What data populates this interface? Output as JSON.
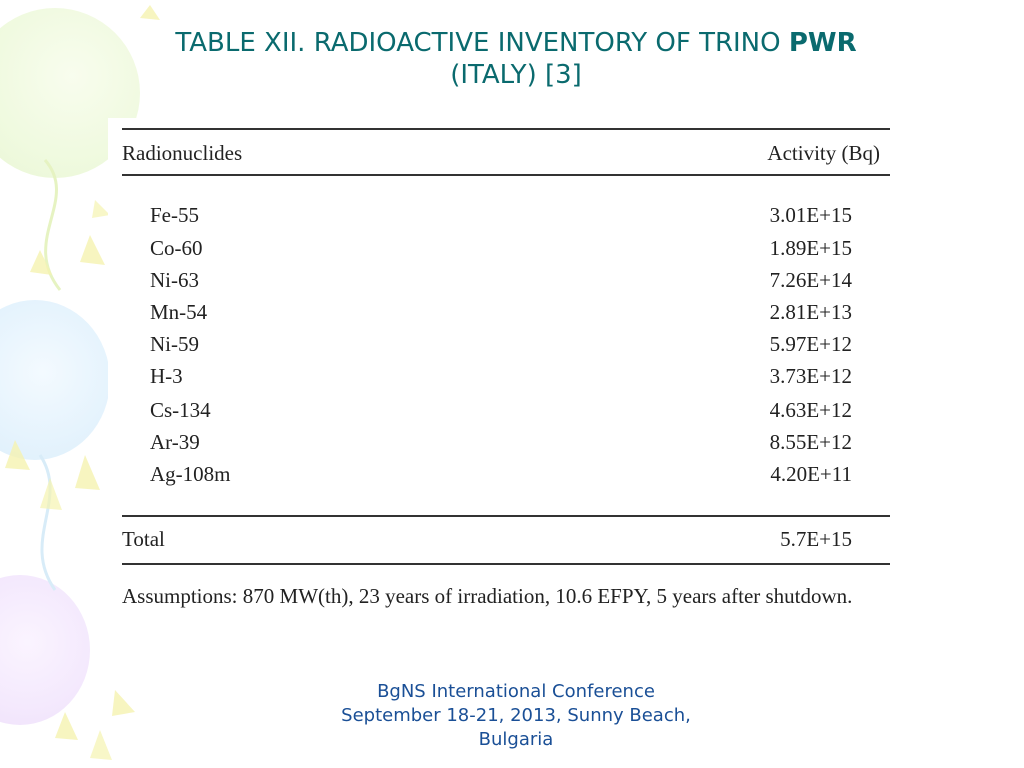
{
  "title": {
    "line1_prefix": "TABLE XII. RADIOACTIVE INVENTORY OF TRINO ",
    "line1_bold": "PWR",
    "line2": "(ITALY) [3]"
  },
  "table": {
    "header": {
      "col1": "Radionuclides",
      "col2": "Activity (Bq)"
    },
    "rows": [
      {
        "name": "Fe-55",
        "value": "3.01E+15"
      },
      {
        "name": "Co-60",
        "value": "1.89E+15"
      },
      {
        "name": "Ni-63",
        "value": "7.26E+14"
      },
      {
        "name": "Mn-54",
        "value": "2.81E+13"
      },
      {
        "name": "Ni-59",
        "value": "5.97E+12"
      },
      {
        "name": "H-3",
        "value": "3.73E+12"
      },
      {
        "name": "Cs-134",
        "value": "4.63E+12"
      },
      {
        "name": "Ar-39",
        "value": "8.55E+12"
      },
      {
        "name": "Ag-108m",
        "value": "4.20E+11"
      }
    ],
    "total": {
      "label": "Total",
      "value": "5.7E+15"
    },
    "note": "Assumptions:  870 MW(th), 23 years of irradiation, 10.6 EFPY, 5 years after shutdown."
  },
  "footer": {
    "line1": "BgNS International Conference",
    "line2": "September 18-21, 2013, Sunny Beach,",
    "line3": "Bulgaria"
  },
  "colors": {
    "title": "#0a6a6e",
    "footer": "#1a4f96",
    "text": "#222222"
  }
}
